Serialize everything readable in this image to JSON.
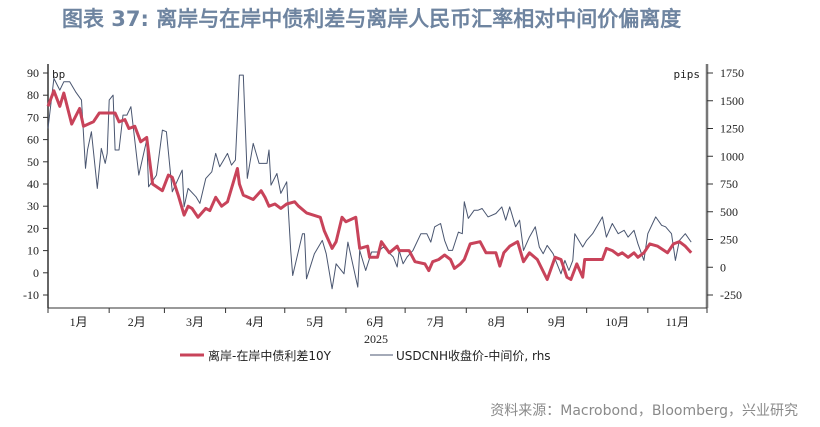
{
  "title": "图表 37: 离岸与在岸中债利差与离岸人民币汇率相对中间价偏离度",
  "source": "资料来源：Macrobond，Bloomberg，兴业研究",
  "chart_data": {
    "type": "line",
    "xlabel": "2025",
    "x_ticks": [
      "1月",
      "2月",
      "3月",
      "4月",
      "5月",
      "6月",
      "7月",
      "8月",
      "9月",
      "10月",
      "11月"
    ],
    "left_axis": {
      "unit": "bp",
      "ylim": [
        -10,
        90
      ],
      "ticks": [
        -10,
        0,
        10,
        20,
        30,
        40,
        50,
        60,
        70,
        80,
        90
      ]
    },
    "right_axis": {
      "unit": "pips",
      "ylim": [
        -250,
        1750
      ],
      "ticks": [
        -250,
        0,
        250,
        500,
        750,
        1000,
        1250,
        1500,
        1750
      ]
    },
    "grid": false,
    "legend_position": "bottom",
    "series": [
      {
        "name": "离岸-在岸中债利差10Y",
        "axis": "left",
        "color": "#c8435a",
        "points": [
          [
            "2025-01-01",
            75
          ],
          [
            "2025-01-04",
            82
          ],
          [
            "2025-01-07",
            75
          ],
          [
            "2025-01-09",
            81
          ],
          [
            "2025-01-13",
            67
          ],
          [
            "2025-01-17",
            74
          ],
          [
            "2025-01-19",
            66
          ],
          [
            "2025-01-24",
            68
          ],
          [
            "2025-01-27",
            72
          ],
          [
            "2025-02-04",
            72
          ],
          [
            "2025-02-06",
            68
          ],
          [
            "2025-02-09",
            69
          ],
          [
            "2025-02-11",
            65
          ],
          [
            "2025-02-14",
            66
          ],
          [
            "2025-02-17",
            59
          ],
          [
            "2025-02-20",
            61
          ],
          [
            "2025-02-23",
            40
          ],
          [
            "2025-02-28",
            37
          ],
          [
            "2025-03-03",
            44
          ],
          [
            "2025-03-05",
            43
          ],
          [
            "2025-03-08",
            35
          ],
          [
            "2025-03-11",
            26
          ],
          [
            "2025-03-13",
            30
          ],
          [
            "2025-03-15",
            29
          ],
          [
            "2025-03-18",
            25
          ],
          [
            "2025-03-22",
            29
          ],
          [
            "2025-03-24",
            28
          ],
          [
            "2025-03-27",
            34
          ],
          [
            "2025-03-30",
            30
          ],
          [
            "2025-04-02",
            32
          ],
          [
            "2025-04-04",
            38
          ],
          [
            "2025-04-07",
            47
          ],
          [
            "2025-04-08",
            40
          ],
          [
            "2025-04-10",
            35
          ],
          [
            "2025-04-15",
            33
          ],
          [
            "2025-04-19",
            37
          ],
          [
            "2025-04-21",
            34
          ],
          [
            "2025-04-23",
            30
          ],
          [
            "2025-04-26",
            31
          ],
          [
            "2025-04-29",
            29
          ],
          [
            "2025-05-02",
            31
          ],
          [
            "2025-05-06",
            32
          ],
          [
            "2025-05-08",
            30
          ],
          [
            "2025-05-12",
            27
          ],
          [
            "2025-05-19",
            25
          ],
          [
            "2025-05-21",
            19
          ],
          [
            "2025-05-25",
            11
          ],
          [
            "2025-05-27",
            14
          ],
          [
            "2025-05-30",
            25
          ],
          [
            "2025-06-01",
            23
          ],
          [
            "2025-06-06",
            25
          ],
          [
            "2025-06-08",
            11
          ],
          [
            "2025-06-12",
            12
          ],
          [
            "2025-06-13",
            7
          ],
          [
            "2025-06-17",
            7
          ],
          [
            "2025-06-19",
            14
          ],
          [
            "2025-06-23",
            9
          ],
          [
            "2025-06-27",
            12
          ],
          [
            "2025-06-28",
            10
          ],
          [
            "2025-07-03",
            10
          ],
          [
            "2025-07-06",
            5
          ],
          [
            "2025-07-11",
            4
          ],
          [
            "2025-07-13",
            1
          ],
          [
            "2025-07-15",
            5
          ],
          [
            "2025-07-18",
            6
          ],
          [
            "2025-07-21",
            8
          ],
          [
            "2025-07-24",
            6
          ],
          [
            "2025-07-26",
            2
          ],
          [
            "2025-07-29",
            4
          ],
          [
            "2025-07-31",
            6
          ],
          [
            "2025-08-03",
            13
          ],
          [
            "2025-08-08",
            14
          ],
          [
            "2025-08-11",
            9
          ],
          [
            "2025-08-16",
            9
          ],
          [
            "2025-08-18",
            3
          ],
          [
            "2025-08-20",
            9
          ],
          [
            "2025-08-23",
            12
          ],
          [
            "2025-08-27",
            14
          ],
          [
            "2025-08-30",
            5
          ],
          [
            "2025-09-02",
            9
          ],
          [
            "2025-09-06",
            6
          ],
          [
            "2025-09-11",
            -3
          ],
          [
            "2025-09-15",
            7
          ],
          [
            "2025-09-18",
            6
          ],
          [
            "2025-09-21",
            -2
          ],
          [
            "2025-09-23",
            -3
          ],
          [
            "2025-09-26",
            4
          ],
          [
            "2025-09-29",
            -2
          ],
          [
            "2025-09-30",
            6
          ],
          [
            "2025-10-09",
            6
          ],
          [
            "2025-10-11",
            11
          ],
          [
            "2025-10-14",
            10
          ],
          [
            "2025-10-17",
            8
          ],
          [
            "2025-10-19",
            9
          ],
          [
            "2025-10-22",
            7
          ],
          [
            "2025-10-25",
            9
          ],
          [
            "2025-10-27",
            7
          ],
          [
            "2025-10-30",
            9
          ],
          [
            "2025-11-02",
            13
          ],
          [
            "2025-11-06",
            12
          ],
          [
            "2025-11-11",
            9
          ],
          [
            "2025-11-14",
            13
          ],
          [
            "2025-11-17",
            14
          ],
          [
            "2025-11-20",
            12
          ],
          [
            "2025-11-23",
            9
          ]
        ]
      },
      {
        "name": "USDCNH收盘价-中间价, rhs",
        "axis": "right",
        "color": "#4a5670",
        "points": [
          [
            "2025-01-01",
            1251
          ],
          [
            "2025-01-04",
            1701
          ],
          [
            "2025-01-07",
            1596
          ],
          [
            "2025-01-09",
            1671
          ],
          [
            "2025-01-12",
            1671
          ],
          [
            "2025-01-15",
            1581
          ],
          [
            "2025-01-18",
            1506
          ],
          [
            "2025-01-20",
            891
          ],
          [
            "2025-01-21",
            1056
          ],
          [
            "2025-01-23",
            1221
          ],
          [
            "2025-01-26",
            710
          ],
          [
            "2025-01-28",
            1071
          ],
          [
            "2025-01-30",
            936
          ],
          [
            "2025-01-31",
            1026
          ],
          [
            "2025-02-01",
            1506
          ],
          [
            "2025-02-03",
            1551
          ],
          [
            "2025-02-04",
            1056
          ],
          [
            "2025-02-06",
            1056
          ],
          [
            "2025-02-08",
            1371
          ],
          [
            "2025-02-10",
            1371
          ],
          [
            "2025-02-12",
            1446
          ],
          [
            "2025-02-16",
            830
          ],
          [
            "2025-02-20",
            1146
          ],
          [
            "2025-02-21",
            725
          ],
          [
            "2025-02-25",
            830
          ],
          [
            "2025-02-28",
            1236
          ],
          [
            "2025-03-02",
            1221
          ],
          [
            "2025-03-05",
            680
          ],
          [
            "2025-03-10",
            875
          ],
          [
            "2025-03-11",
            545
          ],
          [
            "2025-03-13",
            710
          ],
          [
            "2025-03-17",
            635
          ],
          [
            "2025-03-19",
            575
          ],
          [
            "2025-03-22",
            800
          ],
          [
            "2025-03-25",
            860
          ],
          [
            "2025-03-27",
            1026
          ],
          [
            "2025-03-29",
            905
          ],
          [
            "2025-03-31",
            965
          ],
          [
            "2025-04-02",
            1026
          ],
          [
            "2025-04-04",
            920
          ],
          [
            "2025-04-06",
            965
          ],
          [
            "2025-04-08",
            1731
          ],
          [
            "2025-04-10",
            1731
          ],
          [
            "2025-04-12",
            800
          ],
          [
            "2025-04-15",
            1116
          ],
          [
            "2025-04-18",
            936
          ],
          [
            "2025-04-22",
            936
          ],
          [
            "2025-04-23",
            1056
          ],
          [
            "2025-04-24",
            740
          ],
          [
            "2025-04-27",
            845
          ],
          [
            "2025-04-29",
            665
          ],
          [
            "2025-05-02",
            770
          ],
          [
            "2025-05-04",
            152
          ],
          [
            "2025-05-05",
            -74
          ],
          [
            "2025-05-10",
            302
          ],
          [
            "2025-05-11",
            302
          ],
          [
            "2025-05-12",
            -104
          ],
          [
            "2025-05-16",
            122
          ],
          [
            "2025-05-20",
            242
          ],
          [
            "2025-05-22",
            122
          ],
          [
            "2025-05-25",
            -194
          ],
          [
            "2025-05-27",
            31
          ],
          [
            "2025-05-31",
            -59
          ],
          [
            "2025-06-02",
            227
          ],
          [
            "2025-06-07",
            -179
          ],
          [
            "2025-06-08",
            152
          ],
          [
            "2025-06-11",
            -29
          ],
          [
            "2025-06-14",
            137
          ],
          [
            "2025-06-17",
            137
          ],
          [
            "2025-06-20",
            182
          ],
          [
            "2025-06-25",
            92
          ],
          [
            "2025-06-27",
            2
          ],
          [
            "2025-06-28",
            152
          ],
          [
            "2025-06-30",
            31
          ],
          [
            "2025-07-02",
            92
          ],
          [
            "2025-07-05",
            152
          ],
          [
            "2025-07-09",
            302
          ],
          [
            "2025-07-12",
            302
          ],
          [
            "2025-07-14",
            227
          ],
          [
            "2025-07-16",
            364
          ],
          [
            "2025-07-19",
            394
          ],
          [
            "2025-07-21",
            242
          ],
          [
            "2025-07-23",
            152
          ],
          [
            "2025-07-25",
            152
          ],
          [
            "2025-07-28",
            317
          ],
          [
            "2025-07-30",
            302
          ],
          [
            "2025-07-31",
            590
          ],
          [
            "2025-08-02",
            440
          ],
          [
            "2025-08-05",
            514
          ],
          [
            "2025-08-07",
            514
          ],
          [
            "2025-08-09",
            529
          ],
          [
            "2025-08-12",
            454
          ],
          [
            "2025-08-16",
            484
          ],
          [
            "2025-08-19",
            544
          ],
          [
            "2025-08-21",
            424
          ],
          [
            "2025-08-23",
            544
          ],
          [
            "2025-08-26",
            364
          ],
          [
            "2025-08-28",
            424
          ],
          [
            "2025-08-30",
            152
          ],
          [
            "2025-09-02",
            272
          ],
          [
            "2025-09-05",
            364
          ],
          [
            "2025-09-07",
            182
          ],
          [
            "2025-09-09",
            122
          ],
          [
            "2025-09-11",
            197
          ],
          [
            "2025-09-14",
            122
          ],
          [
            "2025-09-16",
            31
          ],
          [
            "2025-09-18",
            -59
          ],
          [
            "2025-09-20",
            62
          ],
          [
            "2025-09-22",
            -29
          ],
          [
            "2025-09-24",
            62
          ],
          [
            "2025-09-25",
            302
          ],
          [
            "2025-09-29",
            182
          ],
          [
            "2025-10-01",
            242
          ],
          [
            "2025-10-04",
            302
          ],
          [
            "2025-10-08",
            424
          ],
          [
            "2025-10-09",
            454
          ],
          [
            "2025-10-11",
            272
          ],
          [
            "2025-10-14",
            394
          ],
          [
            "2025-10-17",
            302
          ],
          [
            "2025-10-20",
            333
          ],
          [
            "2025-10-22",
            272
          ],
          [
            "2025-10-25",
            333
          ],
          [
            "2025-10-27",
            212
          ],
          [
            "2025-10-30",
            62
          ],
          [
            "2025-11-01",
            302
          ],
          [
            "2025-11-05",
            454
          ],
          [
            "2025-11-08",
            378
          ],
          [
            "2025-11-10",
            364
          ],
          [
            "2025-11-13",
            302
          ],
          [
            "2025-11-15",
            62
          ],
          [
            "2025-11-17",
            242
          ],
          [
            "2025-11-20",
            302
          ],
          [
            "2025-11-23",
            227
          ]
        ]
      }
    ]
  }
}
